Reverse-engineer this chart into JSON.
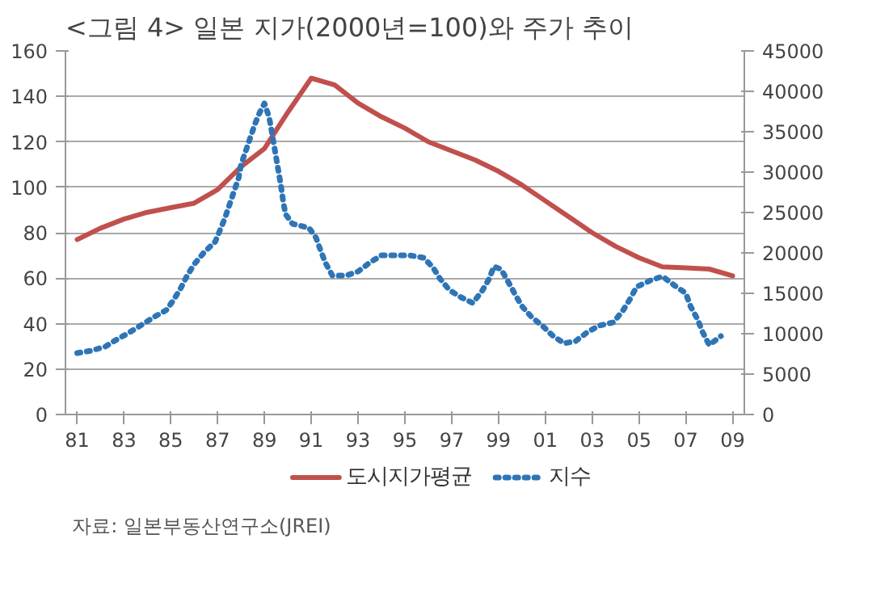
{
  "chart_data": {
    "type": "line",
    "title": "<그림 4>  일본 지가(2000년=100)와 주가 추이",
    "annotations": [
      "자료:  일본부동산연구소(JREI)"
    ],
    "xlim": [
      1980.5,
      2009.5
    ],
    "xticks": [
      {
        "value": 1981,
        "label": "81"
      },
      {
        "value": 1983,
        "label": "83"
      },
      {
        "value": 1985,
        "label": "85"
      },
      {
        "value": 1987,
        "label": "87"
      },
      {
        "value": 1989,
        "label": "89"
      },
      {
        "value": 1991,
        "label": "91"
      },
      {
        "value": 1993,
        "label": "93"
      },
      {
        "value": 1995,
        "label": "95"
      },
      {
        "value": 1997,
        "label": "97"
      },
      {
        "value": 1999,
        "label": "99"
      },
      {
        "value": 2001,
        "label": "01"
      },
      {
        "value": 2003,
        "label": "03"
      },
      {
        "value": 2005,
        "label": "05"
      },
      {
        "value": 2007,
        "label": "07"
      },
      {
        "value": 2009,
        "label": "09"
      }
    ],
    "ylim": [
      0,
      160
    ],
    "yticks": [
      0,
      20,
      40,
      60,
      80,
      100,
      120,
      140,
      160
    ],
    "y2lim": [
      0,
      45000
    ],
    "y2ticks": [
      0,
      5000,
      10000,
      15000,
      20000,
      25000,
      30000,
      35000,
      40000,
      45000
    ],
    "grid": "y",
    "legend": "bottom",
    "series": [
      {
        "name": "도시지가평균",
        "color": "#c0504d",
        "line_style": "solid",
        "x": [
          1981,
          1982,
          1983,
          1984,
          1985,
          1986,
          1987,
          1988,
          1989,
          1990,
          1991,
          1992,
          1993,
          1994,
          1995,
          1996,
          1997,
          1998,
          1999,
          2000,
          2001,
          2002,
          2003,
          2004,
          2005,
          2006,
          2007,
          2008,
          2009
        ],
        "values": [
          77,
          82,
          86,
          89,
          91,
          93,
          99,
          109,
          117,
          133,
          148,
          145,
          137,
          131,
          126,
          120,
          116,
          112,
          107,
          101,
          94,
          87,
          80,
          74,
          69,
          65,
          64.5,
          64,
          61
        ]
      },
      {
        "name": "지수",
        "color": "#2e75b6",
        "line_style": "dotted",
        "axis": "y2",
        "x": [
          1981.0,
          1981.6,
          1982.2,
          1982.7,
          1983.2,
          1983.7,
          1984.3,
          1984.8,
          1985.1,
          1985.4,
          1985.7,
          1986.0,
          1986.4,
          1986.9,
          1987.1,
          1987.3,
          1987.5,
          1987.7,
          1987.9,
          1988.0,
          1988.2,
          1988.4,
          1988.6,
          1988.8,
          1989.0,
          1989.2,
          1989.3,
          1989.4,
          1989.5,
          1989.6,
          1989.7,
          1989.8,
          1989.9,
          1990.2,
          1990.9,
          1991.2,
          1991.4,
          1991.6,
          1991.9,
          1992.5,
          1993.0,
          1993.5,
          1994.0,
          1994.6,
          1995.2,
          1995.8,
          1996.2,
          1996.5,
          1996.9,
          1997.4,
          1997.9,
          1998.3,
          1998.6,
          1998.8,
          1999.1,
          1999.4,
          1999.7,
          2000.0,
          2000.4,
          2000.9,
          2001.3,
          2001.8,
          2002.3,
          2002.8,
          2003.3,
          2003.9,
          2004.3,
          2004.6,
          2004.9,
          2005.5,
          2006.0,
          2006.5,
          2007.0,
          2007.2,
          2007.5,
          2007.7,
          2008.0,
          2008.5
        ],
        "values": [
          7600,
          7900,
          8400,
          9300,
          10100,
          11000,
          12100,
          12900,
          14100,
          15500,
          17200,
          18600,
          20000,
          21400,
          22800,
          24200,
          25900,
          27600,
          29300,
          30900,
          32600,
          34300,
          36000,
          37400,
          38500,
          36800,
          35200,
          33500,
          31800,
          30100,
          28400,
          26400,
          24800,
          23600,
          23100,
          21900,
          20300,
          18800,
          17200,
          17200,
          17700,
          18800,
          19700,
          19700,
          19700,
          19400,
          18200,
          16800,
          15400,
          14500,
          13800,
          15300,
          16800,
          18300,
          18000,
          16500,
          14900,
          13400,
          12100,
          10900,
          9800,
          8800,
          9100,
          10200,
          11000,
          11400,
          12800,
          14200,
          15800,
          16600,
          17100,
          16000,
          15000,
          13400,
          11800,
          10300,
          8600,
          9700
        ]
      }
    ]
  }
}
